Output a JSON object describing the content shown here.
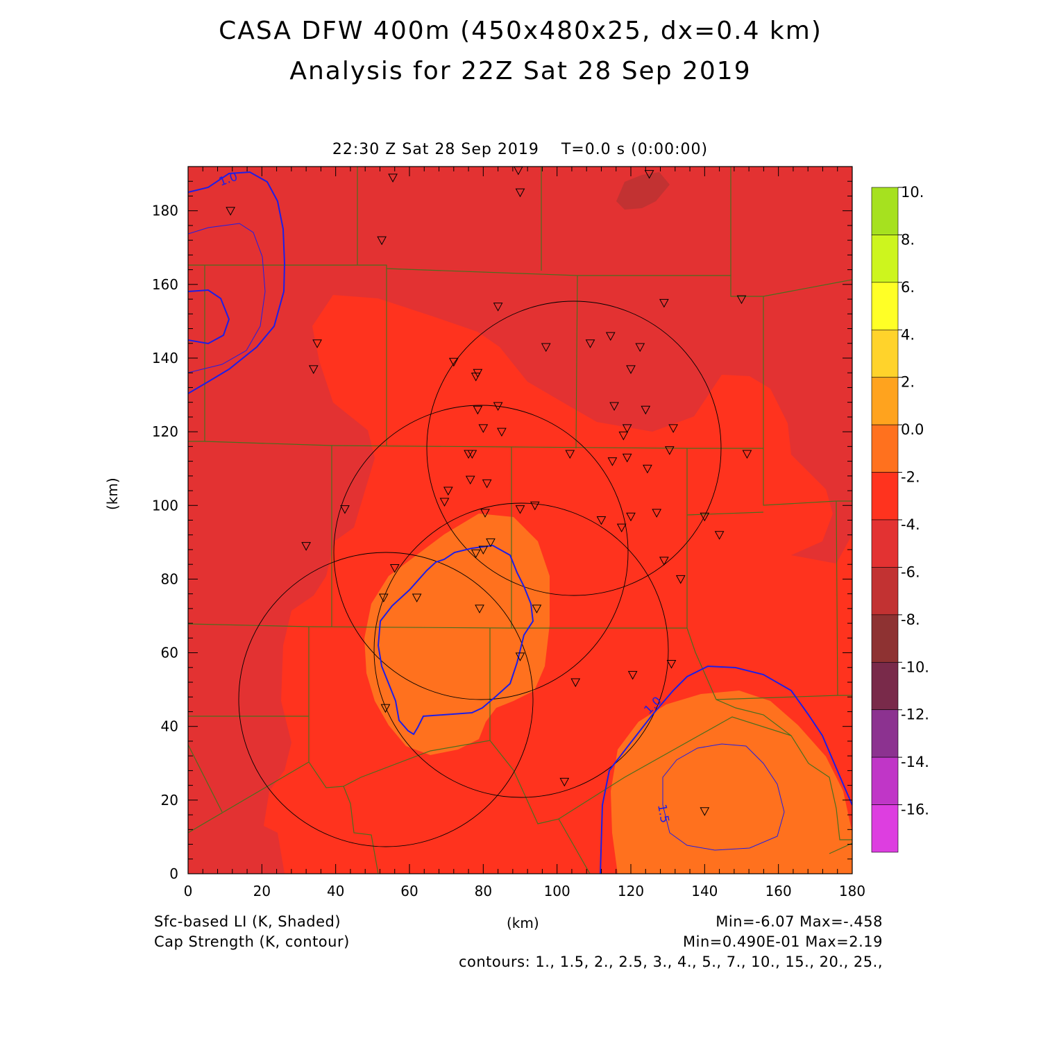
{
  "title": {
    "line1": "CASA DFW 400m (450x480x25, dx=0.4 km)",
    "line2": "Analysis for 22Z Sat 28 Sep 2019"
  },
  "subtitle": "22:30 Z Sat 28 Sep 2019    T=0.0 s (0:00:00)",
  "axes": {
    "xlabel": "(km)",
    "ylabel": "(km)",
    "x_ticks": [
      "0",
      "20",
      "40",
      "60",
      "80",
      "100",
      "120",
      "140",
      "160",
      "180"
    ],
    "y_ticks": [
      "0",
      "20",
      "40",
      "60",
      "80",
      "100",
      "120",
      "140",
      "160",
      "180"
    ],
    "xlim": [
      0,
      180
    ],
    "ylim": [
      0,
      192
    ]
  },
  "colorbar": {
    "labels": [
      "10.",
      "8.",
      "6.",
      "4.",
      "2.",
      "0.0",
      "-2.",
      "-4.",
      "-6.",
      "-8.",
      "-10.",
      "-12.",
      "-14.",
      "-16."
    ],
    "colors": [
      "#a6e11f",
      "#cdf51e",
      "#ffff26",
      "#ffd32b",
      "#ffa31e",
      "#ff711e",
      "#ff331e",
      "#e33232",
      "#c23232",
      "#8e3232",
      "#792a4a",
      "#8c3290",
      "#c036c7",
      "#dd3ee0"
    ]
  },
  "shade_colors": {
    "level_minus2_minus4": "#ff331e",
    "level_minus4_minus6": "#e33232",
    "level_minus6_minus8": "#c23232",
    "level_0_minus2": "#ff711e",
    "contour": "#1e1ee6",
    "boundary": "#4a6e1e"
  },
  "contour_labels": [
    "1.0",
    "1.0",
    "1.5"
  ],
  "footer": {
    "left1": "Sfc-based LI (K, Shaded)",
    "left2": "Cap Strength (K, contour)",
    "right1": "Min=-6.07 Max=-.458",
    "right2": "Min=0.490E-01 Max=2.19",
    "right3": "contours: 1., 1.5, 2., 2.5, 3., 4., 5., 7., 10., 15., 20., 25.,"
  },
  "stations_km": [
    [
      55.5,
      189
    ],
    [
      89.5,
      191
    ],
    [
      125,
      190
    ],
    [
      90,
      185
    ],
    [
      11.5,
      180
    ],
    [
      52.5,
      172
    ],
    [
      150,
      156
    ],
    [
      84,
      154
    ],
    [
      129,
      155
    ],
    [
      35,
      144
    ],
    [
      97,
      143
    ],
    [
      109,
      144
    ],
    [
      114.5,
      146
    ],
    [
      122.5,
      143
    ],
    [
      72,
      139
    ],
    [
      34,
      137
    ],
    [
      78.5,
      136
    ],
    [
      78,
      135
    ],
    [
      120,
      137
    ],
    [
      78.5,
      126
    ],
    [
      84,
      127
    ],
    [
      115.5,
      127
    ],
    [
      124,
      126
    ],
    [
      80,
      121
    ],
    [
      119,
      121
    ],
    [
      85,
      120
    ],
    [
      118,
      119
    ],
    [
      131.5,
      121
    ],
    [
      76,
      114
    ],
    [
      77,
      114
    ],
    [
      103.5,
      114
    ],
    [
      115,
      112
    ],
    [
      119,
      113
    ],
    [
      124.5,
      110
    ],
    [
      130.5,
      115
    ],
    [
      151.5,
      114
    ],
    [
      76.5,
      107
    ],
    [
      81,
      106
    ],
    [
      70.5,
      104
    ],
    [
      69.5,
      101
    ],
    [
      42.5,
      99
    ],
    [
      80.5,
      98
    ],
    [
      90,
      99
    ],
    [
      94,
      100
    ],
    [
      112,
      96
    ],
    [
      120,
      97
    ],
    [
      127,
      98
    ],
    [
      140,
      97
    ],
    [
      117.5,
      94
    ],
    [
      144,
      92
    ],
    [
      32,
      89
    ],
    [
      82,
      90
    ],
    [
      78,
      87
    ],
    [
      80,
      88
    ],
    [
      129,
      85
    ],
    [
      133.5,
      80
    ],
    [
      56,
      83
    ],
    [
      53,
      75
    ],
    [
      62,
      75
    ],
    [
      79,
      72
    ],
    [
      94.5,
      72
    ],
    [
      90,
      59
    ],
    [
      131,
      57
    ],
    [
      120.5,
      54
    ],
    [
      105,
      52
    ],
    [
      53.5,
      45
    ],
    [
      102,
      25
    ],
    [
      140,
      17
    ]
  ]
}
